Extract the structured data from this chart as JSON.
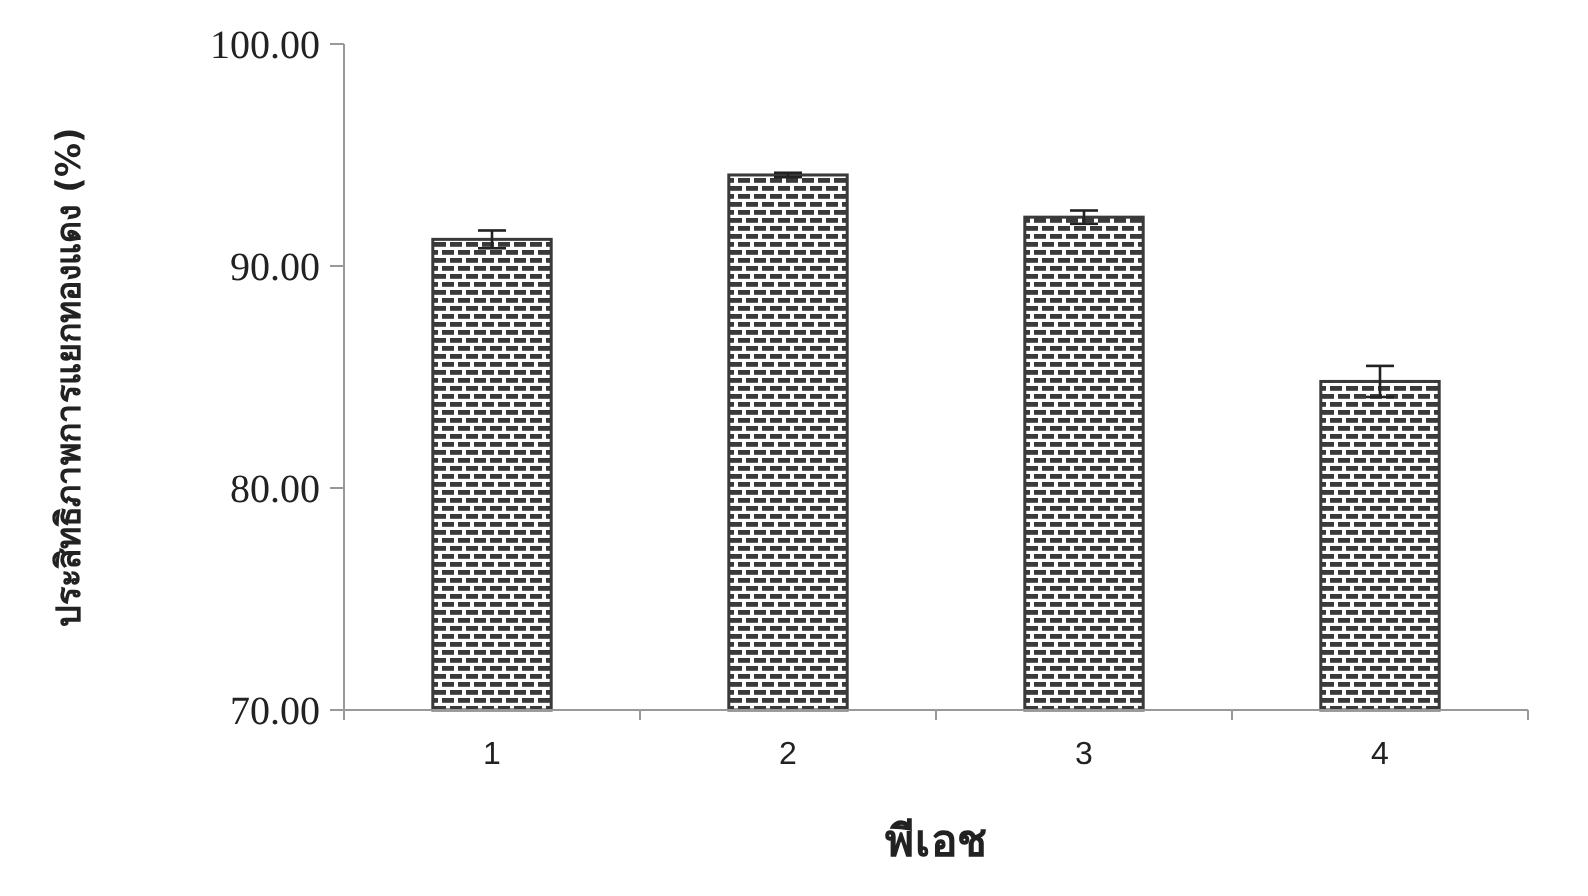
{
  "chart_data": {
    "type": "bar",
    "xlabel": "พีเอช",
    "ylabel": "ประสิทธิภาพการแยกทองแดง (%)",
    "categories": [
      "1",
      "2",
      "3",
      "4"
    ],
    "values": [
      91.2,
      94.1,
      92.2,
      84.8
    ],
    "errors": [
      0.4,
      0.1,
      0.3,
      0.7
    ],
    "color": "#3a3a3a",
    "ylim": [
      70,
      100
    ],
    "yticks": [
      {
        "value": 70,
        "label": "70.00"
      },
      {
        "value": 80,
        "label": "80.00"
      },
      {
        "value": 90,
        "label": "90.00"
      },
      {
        "value": 100,
        "label": "100.00"
      }
    ],
    "grid": false
  }
}
